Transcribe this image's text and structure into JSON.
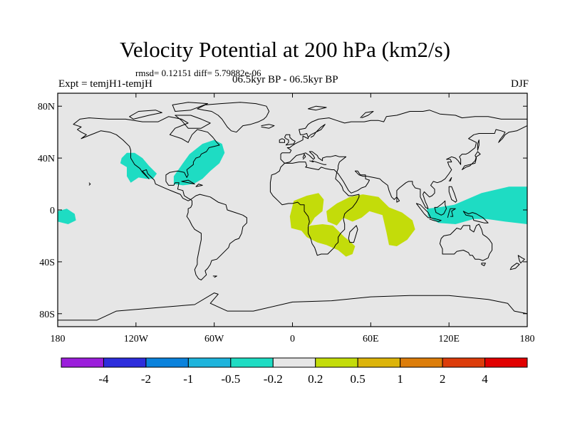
{
  "title": "Velocity Potential at 200 hPa (km2/s)",
  "stats": "rmsd= 0.12151 diff= 5.79882e-06",
  "experiment": "Expt = temjH1-temjH",
  "period": "06.5kyr BP - 06.5kyr BP",
  "season": "DJF",
  "map": {
    "projection": "cylindrical equidistant",
    "lon_range": [
      -180,
      180
    ],
    "lat_range": [
      -90,
      90
    ],
    "lat_ticks": [
      {
        "value": 80,
        "label": "80N"
      },
      {
        "value": 40,
        "label": "40N"
      },
      {
        "value": 0,
        "label": "0"
      },
      {
        "value": -40,
        "label": "40S"
      },
      {
        "value": -80,
        "label": "80S"
      }
    ],
    "lon_ticks": [
      {
        "value": -180,
        "label": "180"
      },
      {
        "value": -120,
        "label": "120W"
      },
      {
        "value": -60,
        "label": "60W"
      },
      {
        "value": 0,
        "label": "0"
      },
      {
        "value": 60,
        "label": "60E"
      },
      {
        "value": 120,
        "label": "120E"
      },
      {
        "value": 180,
        "label": "180"
      }
    ],
    "colors": {
      "background": "#e6e6e6",
      "coast": "#000000",
      "negative_fill": "#1edcc3",
      "positive_fill": "#c3dc0a"
    },
    "anomaly_regions": [
      {
        "name": "eastern-pacific",
        "range": "-0.5 to -0.2",
        "color": "#1edcc3",
        "lonlat": [
          [
            -180,
            -1
          ],
          [
            -173,
            1
          ],
          [
            -167,
            -3
          ],
          [
            -166,
            -8
          ],
          [
            -172,
            -11
          ],
          [
            -180,
            -9
          ]
        ]
      },
      {
        "name": "western-north-america",
        "range": "-0.5 to -0.2",
        "color": "#1edcc3",
        "lonlat": [
          [
            -131,
            40
          ],
          [
            -127,
            44
          ],
          [
            -121,
            44
          ],
          [
            -115,
            40
          ],
          [
            -110,
            34
          ],
          [
            -104,
            28
          ],
          [
            -107,
            24
          ],
          [
            -112,
            24
          ],
          [
            -118,
            25
          ],
          [
            -124,
            21
          ],
          [
            -127,
            26
          ],
          [
            -127,
            33
          ],
          [
            -132,
            36
          ]
        ]
      },
      {
        "name": "eastern-north-america",
        "range": "-0.5 to -0.2",
        "color": "#1edcc3",
        "lonlat": [
          [
            -91,
            26
          ],
          [
            -84,
            36
          ],
          [
            -79,
            43
          ],
          [
            -69,
            51
          ],
          [
            -60,
            54
          ],
          [
            -54,
            51
          ],
          [
            -52,
            44
          ],
          [
            -56,
            36
          ],
          [
            -63,
            30
          ],
          [
            -69,
            24
          ],
          [
            -76,
            20
          ],
          [
            -84,
            19
          ],
          [
            -91,
            20
          ]
        ]
      },
      {
        "name": "maritime-continent",
        "range": "-0.5 to -0.2",
        "color": "#1edcc3",
        "lonlat": [
          [
            103,
            1
          ],
          [
            112,
            2
          ],
          [
            124,
            4
          ],
          [
            145,
            13
          ],
          [
            166,
            18
          ],
          [
            180,
            18
          ],
          [
            180,
            -11
          ],
          [
            163,
            -9
          ],
          [
            149,
            -7
          ],
          [
            139,
            -7
          ],
          [
            125,
            -11
          ],
          [
            112,
            -10
          ],
          [
            104,
            -5
          ]
        ]
      },
      {
        "name": "west-africa",
        "range": "0.2 to 0.5",
        "color": "#c3dc0a",
        "lonlat": [
          [
            -2,
            -5
          ],
          [
            1,
            7
          ],
          [
            11,
            11
          ],
          [
            20,
            13
          ],
          [
            24,
            8
          ],
          [
            23,
            -1
          ],
          [
            17,
            -6
          ],
          [
            14,
            -11
          ],
          [
            7,
            -16
          ],
          [
            -1,
            -14
          ]
        ]
      },
      {
        "name": "southern-africa",
        "range": "0.2 to 0.5",
        "color": "#c3dc0a",
        "lonlat": [
          [
            6,
            -15
          ],
          [
            14,
            -12
          ],
          [
            23,
            -11
          ],
          [
            31,
            -12
          ],
          [
            36,
            -17
          ],
          [
            40,
            -21
          ],
          [
            44,
            -24
          ],
          [
            48,
            -28
          ],
          [
            46,
            -34
          ],
          [
            41,
            -36
          ],
          [
            35,
            -31
          ],
          [
            26,
            -27
          ],
          [
            19,
            -25
          ],
          [
            11,
            -21
          ]
        ]
      },
      {
        "name": "east-africa-indian-ocean",
        "range": "0.2 to 0.5",
        "color": "#c3dc0a",
        "lonlat": [
          [
            26,
            -1
          ],
          [
            34,
            5
          ],
          [
            44,
            10
          ],
          [
            54,
            12
          ],
          [
            66,
            10
          ],
          [
            74,
            2
          ],
          [
            84,
            -2
          ],
          [
            92,
            -8
          ],
          [
            94,
            -15
          ],
          [
            88,
            -23
          ],
          [
            80,
            -28
          ],
          [
            74,
            -27
          ],
          [
            72,
            -17
          ],
          [
            69,
            -4
          ],
          [
            59,
            -1
          ],
          [
            53,
            -6
          ],
          [
            46,
            -9
          ],
          [
            39,
            -6
          ],
          [
            34,
            -12
          ],
          [
            27,
            -9
          ]
        ]
      }
    ]
  },
  "colorbar": {
    "colors": [
      "#9b1edb",
      "#2d2ddc",
      "#0a82dc",
      "#1eb4dc",
      "#1edcc3",
      "#e6e6e6",
      "#c3dc0a",
      "#dcb40a",
      "#dc7d0a",
      "#dc3c0a",
      "#e10000"
    ],
    "labels": [
      "-4",
      "-2",
      "-1",
      "-0.5",
      "-0.2",
      "0.2",
      "0.5",
      "1",
      "2",
      "4"
    ]
  }
}
